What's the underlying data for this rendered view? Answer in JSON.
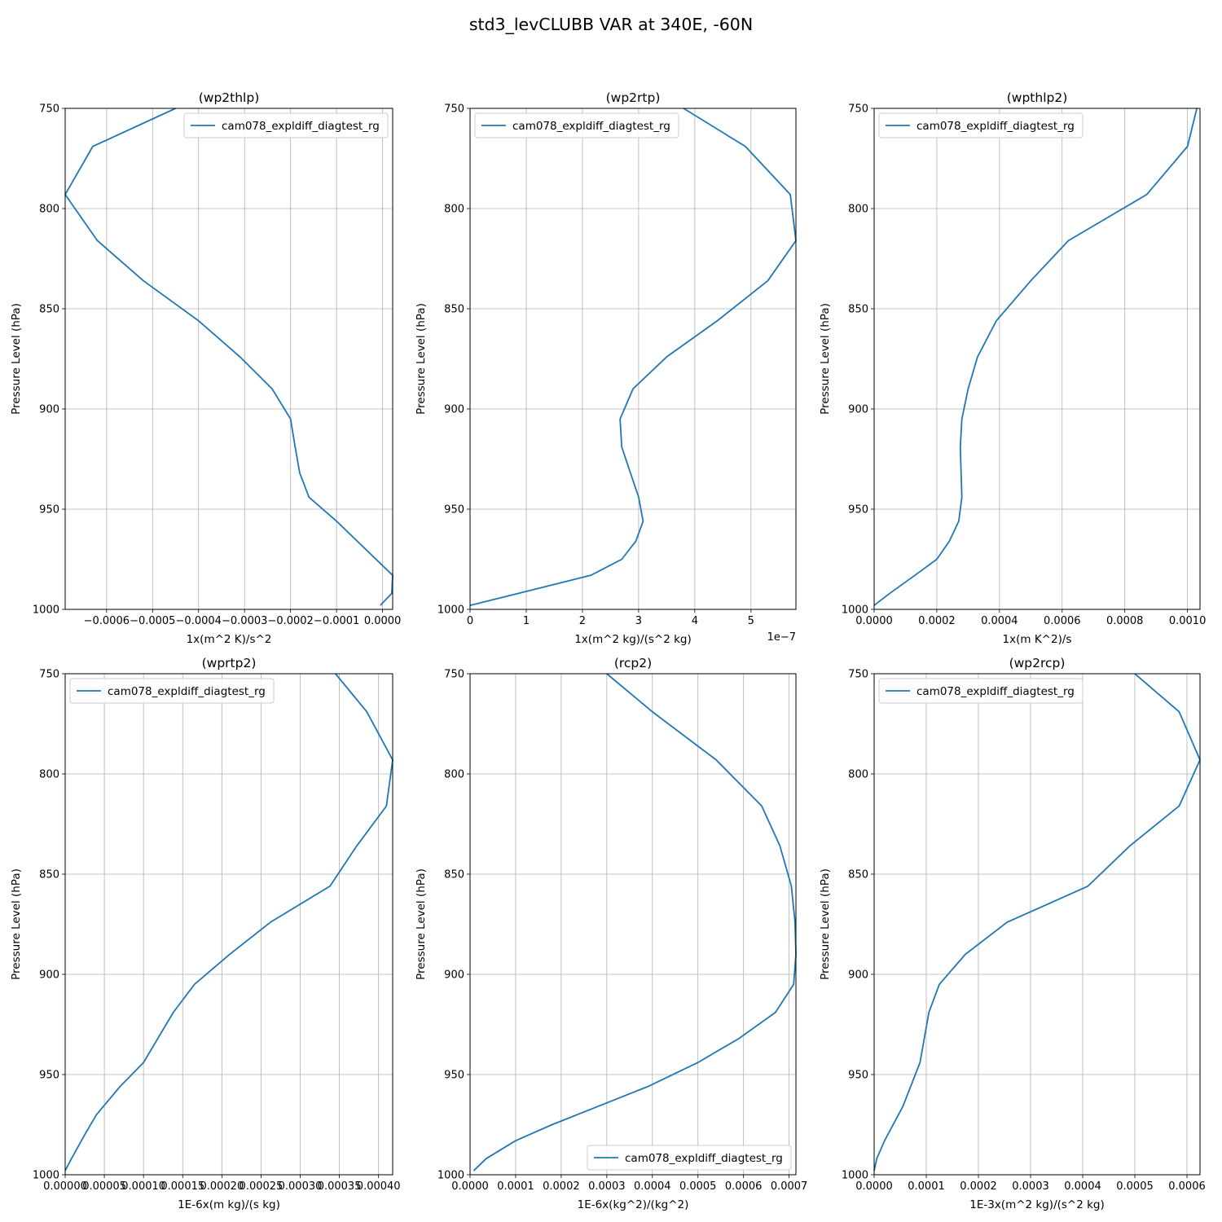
{
  "figure": {
    "suptitle": "std3_levCLUBB VAR at 340E, -60N",
    "line_color": "#1f77b4"
  },
  "chart_data": [
    {
      "type": "line",
      "title": "(wp2thlp)",
      "xlabel": "1x(m^2 K)/s^2",
      "ylabel": "Pressure Level (hPa)",
      "offset_text": "",
      "xlim": [
        -0.00069,
        2.2e-05
      ],
      "ylim": [
        1000,
        750
      ],
      "xticks": [
        -0.0006,
        -0.0005,
        -0.0004,
        -0.0003,
        -0.0002,
        -0.0001,
        0.0
      ],
      "xtick_labels": [
        "−0.0006",
        "−0.0005",
        "−0.0004",
        "−0.0003",
        "−0.0002",
        "−0.0001",
        "0.0000"
      ],
      "yticks": [
        750,
        800,
        850,
        900,
        950,
        1000
      ],
      "ytick_labels": [
        "750",
        "800",
        "850",
        "900",
        "950",
        "1000"
      ],
      "grid": true,
      "legend_loc": "upper right",
      "series": [
        {
          "name": "cam078_expldiff_diagtest_rg",
          "x": [
            -0.00045,
            -0.00063,
            -0.00069,
            -0.00062,
            -0.00052,
            -0.0004,
            -0.00031,
            -0.00024,
            -0.0002,
            -0.00019,
            -0.00018,
            -0.00016,
            -0.0001,
            2.2e-05,
            2e-05,
            -5e-06
          ],
          "y": [
            750,
            769,
            793,
            816,
            836,
            856,
            874,
            890,
            905,
            919,
            932,
            944,
            956,
            983,
            992,
            998
          ]
        }
      ]
    },
    {
      "type": "line",
      "title": "(wp2rtp)",
      "xlabel": "1x(m^2 kg)/(s^2 kg)",
      "ylabel": "Pressure Level (hPa)",
      "offset_text": "1e−7",
      "xlim": [
        0,
        5.8
      ],
      "ylim": [
        1000,
        750
      ],
      "xticks": [
        0,
        1,
        2,
        3,
        4,
        5
      ],
      "xtick_labels": [
        "0",
        "1",
        "2",
        "3",
        "4",
        "5"
      ],
      "yticks": [
        750,
        800,
        850,
        900,
        950,
        1000
      ],
      "ytick_labels": [
        "750",
        "800",
        "850",
        "900",
        "950",
        "1000"
      ],
      "grid": true,
      "legend_loc": "upper left",
      "series": [
        {
          "name": "cam078_expldiff_diagtest_rg",
          "x": [
            3.8,
            4.9,
            5.7,
            5.8,
            5.3,
            4.4,
            3.5,
            2.9,
            2.67,
            2.7,
            3.0,
            3.08,
            2.95,
            2.7,
            2.15,
            0.0
          ],
          "y": [
            750,
            769,
            793,
            816,
            836,
            856,
            874,
            890,
            905,
            919,
            944,
            956,
            966,
            975,
            983,
            998
          ]
        }
      ]
    },
    {
      "type": "line",
      "title": "(wpthlp2)",
      "xlabel": "1x(m K^2)/s",
      "ylabel": "Pressure Level (hPa)",
      "offset_text": "",
      "xlim": [
        0,
        0.00104
      ],
      "ylim": [
        1000,
        750
      ],
      "xticks": [
        0.0,
        0.0002,
        0.0004,
        0.0006,
        0.0008,
        0.001
      ],
      "xtick_labels": [
        "0.0000",
        "0.0002",
        "0.0004",
        "0.0006",
        "0.0008",
        "0.0010"
      ],
      "yticks": [
        750,
        800,
        850,
        900,
        950,
        1000
      ],
      "ytick_labels": [
        "750",
        "800",
        "850",
        "900",
        "950",
        "1000"
      ],
      "grid": true,
      "legend_loc": "upper left",
      "series": [
        {
          "name": "cam078_expldiff_diagtest_rg",
          "x": [
            0.00103,
            0.001,
            0.00087,
            0.00062,
            0.0005,
            0.00039,
            0.00033,
            0.0003,
            0.00028,
            0.000275,
            0.00028,
            0.00027,
            0.00024,
            0.0002,
            0.00013,
            5e-05,
            0.0
          ],
          "y": [
            750,
            769,
            793,
            816,
            836,
            856,
            874,
            890,
            905,
            919,
            944,
            956,
            966,
            975,
            983,
            992,
            998
          ]
        }
      ]
    },
    {
      "type": "line",
      "title": "(wprtp2)",
      "xlabel": "1E-6x(m kg)/(s kg)",
      "ylabel": "Pressure Level (hPa)",
      "offset_text": "",
      "xlim": [
        0,
        0.000418
      ],
      "ylim": [
        1000,
        750
      ],
      "xticks": [
        0.0,
        5e-05,
        0.0001,
        0.00015,
        0.0002,
        0.00025,
        0.0003,
        0.00035,
        0.0004
      ],
      "xtick_labels": [
        "0.00000",
        "0.00005",
        "0.00010",
        "0.00015",
        "0.00020",
        "0.00025",
        "0.00030",
        "0.00035",
        "0.00040"
      ],
      "yticks": [
        750,
        800,
        850,
        900,
        950,
        1000
      ],
      "ytick_labels": [
        "750",
        "800",
        "850",
        "900",
        "950",
        "1000"
      ],
      "grid": true,
      "legend_loc": "upper left",
      "series": [
        {
          "name": "cam078_expldiff_diagtest_rg",
          "x": [
            0.000345,
            0.000385,
            0.000418,
            0.00041,
            0.000372,
            0.000338,
            0.000262,
            0.00021,
            0.000165,
            0.000138,
            0.0001,
            7e-05,
            4e-05,
            2.5e-05,
            8e-06,
            0.0
          ],
          "y": [
            750,
            769,
            793,
            816,
            836,
            856,
            874,
            890,
            905,
            919,
            944,
            956,
            970,
            980,
            992,
            998
          ]
        }
      ]
    },
    {
      "type": "line",
      "title": "(rcp2)",
      "xlabel": "1E-6x(kg^2)/(kg^2)",
      "ylabel": "Pressure Level (hPa)",
      "offset_text": "",
      "xlim": [
        0,
        0.000715
      ],
      "ylim": [
        1000,
        750
      ],
      "xticks": [
        0.0,
        0.0001,
        0.0002,
        0.0003,
        0.0004,
        0.0005,
        0.0006,
        0.0007
      ],
      "xtick_labels": [
        "0.0000",
        "0.0001",
        "0.0002",
        "0.0003",
        "0.0004",
        "0.0005",
        "0.0006",
        "0.0007"
      ],
      "yticks": [
        750,
        800,
        850,
        900,
        950,
        1000
      ],
      "ytick_labels": [
        "750",
        "800",
        "850",
        "900",
        "950",
        "1000"
      ],
      "grid": true,
      "legend_loc": "lower right",
      "series": [
        {
          "name": "cam078_expldiff_diagtest_rg",
          "x": [
            0.0003,
            0.0004,
            0.00054,
            0.00064,
            0.00068,
            0.000705,
            0.000713,
            0.000715,
            0.00071,
            0.00067,
            0.00059,
            0.0005,
            0.00039,
            0.00018,
            0.0001,
            3.5e-05,
            8e-06
          ],
          "y": [
            750,
            769,
            793,
            816,
            836,
            856,
            874,
            890,
            905,
            919,
            932,
            944,
            956,
            975,
            983,
            992,
            998
          ]
        }
      ]
    },
    {
      "type": "line",
      "title": "(wp2rcp)",
      "xlabel": "1E-3x(m^2 kg)/(s^2 kg)",
      "ylabel": "Pressure Level (hPa)",
      "offset_text": "",
      "xlim": [
        0,
        0.000625
      ],
      "ylim": [
        1000,
        750
      ],
      "xticks": [
        0.0,
        0.0001,
        0.0002,
        0.0003,
        0.0004,
        0.0005,
        0.0006
      ],
      "xtick_labels": [
        "0.0000",
        "0.0001",
        "0.0002",
        "0.0003",
        "0.0004",
        "0.0005",
        "0.0006"
      ],
      "yticks": [
        750,
        800,
        850,
        900,
        950,
        1000
      ],
      "ytick_labels": [
        "750",
        "800",
        "850",
        "900",
        "950",
        "1000"
      ],
      "grid": true,
      "legend_loc": "upper left",
      "series": [
        {
          "name": "cam078_expldiff_diagtest_rg",
          "x": [
            0.0005,
            0.000585,
            0.000625,
            0.000585,
            0.00049,
            0.00041,
            0.000255,
            0.000175,
            0.000125,
            0.000105,
            8.8e-05,
            7e-05,
            5.5e-05,
            2e-05,
            5e-06,
            0.0
          ],
          "y": [
            750,
            769,
            793,
            816,
            836,
            856,
            874,
            890,
            905,
            919,
            944,
            956,
            966,
            983,
            992,
            998
          ]
        }
      ]
    }
  ]
}
